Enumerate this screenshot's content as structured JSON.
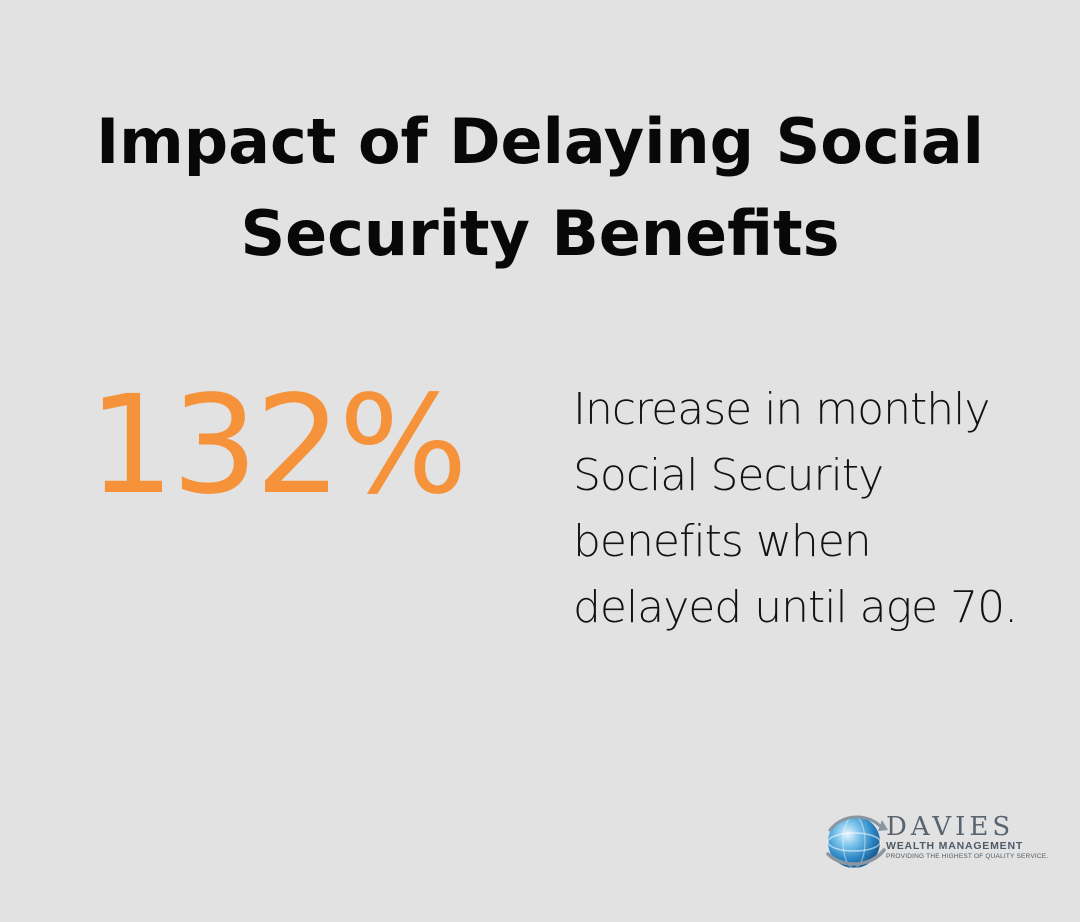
{
  "title": "Impact of Delaying Social Security Benefits",
  "stat": {
    "value": "132%",
    "description": "Increase in monthly Social Security benefits when delayed until age 70."
  },
  "logo": {
    "name": "DAVIES",
    "subtitle": "WEALTH MANAGEMENT",
    "tagline": "PROVIDING THE HIGHEST OF QUALITY SERVICE."
  },
  "colors": {
    "background": "#e1e2e1",
    "accent": "#f5923a",
    "text": "#080808"
  }
}
